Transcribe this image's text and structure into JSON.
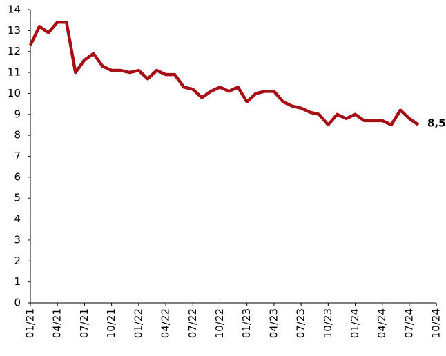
{
  "chart_data": {
    "type": "line",
    "categories": [
      "01/21",
      null,
      null,
      "04/21",
      null,
      null,
      "07/21",
      null,
      null,
      "10/21",
      null,
      null,
      "01/22",
      null,
      null,
      "04/22",
      null,
      null,
      "07/22",
      null,
      null,
      "10/22",
      null,
      null,
      "01/23",
      null,
      null,
      "04/23",
      null,
      null,
      "07/23",
      null,
      null,
      "10/23",
      null,
      null,
      "01/24",
      null,
      null,
      "04/24",
      null,
      null,
      "07/24",
      null,
      null,
      "10/24"
    ],
    "values": [
      12.3,
      13.2,
      12.9,
      13.4,
      13.4,
      11.0,
      11.6,
      11.9,
      11.3,
      11.1,
      11.1,
      11.0,
      11.1,
      10.7,
      11.1,
      10.9,
      10.9,
      10.3,
      10.2,
      9.8,
      10.1,
      10.3,
      10.1,
      10.3,
      9.6,
      10.0,
      10.1,
      10.1,
      9.6,
      9.4,
      9.3,
      9.1,
      9.0,
      8.5,
      9.0,
      8.8,
      9.0,
      8.7,
      8.7,
      8.7,
      8.5,
      9.2,
      8.8,
      8.5,
      null,
      null
    ],
    "value_labels": [
      null,
      null,
      null,
      null,
      null,
      null,
      null,
      null,
      null,
      null,
      null,
      null,
      null,
      null,
      null,
      null,
      null,
      null,
      null,
      null,
      null,
      null,
      null,
      null,
      null,
      null,
      null,
      null,
      null,
      null,
      null,
      null,
      null,
      null,
      null,
      null,
      null,
      null,
      null,
      null,
      null,
      null,
      null,
      "8,5",
      null,
      null
    ],
    "color": "#a50f15",
    "ylim": [
      0,
      14
    ],
    "yticks": [
      0,
      1,
      2,
      3,
      4,
      5,
      6,
      7,
      8,
      9,
      10,
      11,
      12,
      13,
      14
    ],
    "grid": false
  }
}
